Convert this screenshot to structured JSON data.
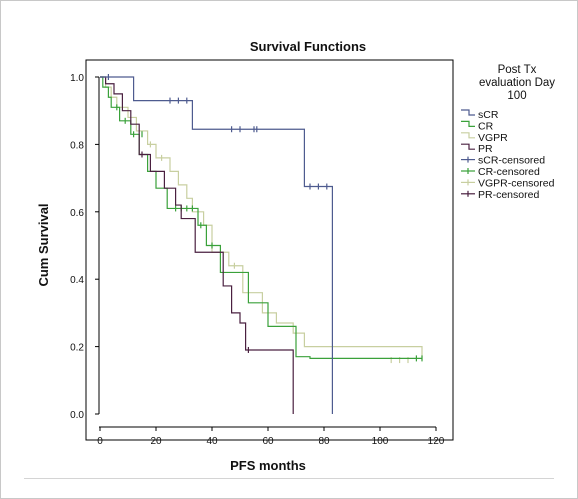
{
  "chart_data": {
    "type": "line",
    "title": "Survival Functions",
    "xlabel": "PFS months",
    "ylabel": "Cum Survival",
    "xlim": [
      0,
      120
    ],
    "ylim": [
      0,
      1.0
    ],
    "x_ticks": [
      "0",
      "20",
      "40",
      "60",
      "80",
      "100",
      "120"
    ],
    "y_ticks": [
      "0.0",
      "0.2",
      "0.4",
      "0.6",
      "0.8",
      "1.0"
    ],
    "grid": false,
    "legend_title": "Post Tx evaluation Day 100",
    "legend_title_lines": [
      "Post Tx",
      "evaluation Day",
      "100"
    ],
    "legend_position": "right",
    "legend": [
      "sCR",
      "CR",
      "VGPR",
      "PR",
      "sCR-censored",
      "CR-censored",
      "VGPR-censored",
      "PR-censored"
    ],
    "series": [
      {
        "name": "sCR",
        "color": "#4e5b8f",
        "x": [
          0,
          2,
          5,
          12,
          33,
          73,
          83,
          83
        ],
        "y": [
          1.0,
          1.0,
          1.0,
          0.93,
          0.845,
          0.675,
          0.675,
          0.0
        ],
        "censored_x": [
          3,
          25,
          28,
          31,
          47,
          50,
          55,
          56,
          75,
          78,
          81
        ],
        "censored_y": [
          1.0,
          0.93,
          0.93,
          0.93,
          0.845,
          0.845,
          0.845,
          0.845,
          0.675,
          0.675,
          0.675
        ]
      },
      {
        "name": "CR",
        "color": "#3aa13a",
        "x": [
          0,
          1,
          3,
          4,
          7,
          11,
          14,
          17,
          20,
          24,
          35,
          38,
          43,
          53,
          60,
          70,
          75,
          115
        ],
        "y": [
          1.0,
          0.97,
          0.94,
          0.91,
          0.87,
          0.83,
          0.77,
          0.72,
          0.67,
          0.61,
          0.56,
          0.5,
          0.42,
          0.33,
          0.26,
          0.17,
          0.165,
          0.165
        ],
        "censored_x": [
          6,
          9,
          12,
          15,
          27,
          29,
          31,
          33,
          36,
          40,
          113,
          115
        ],
        "censored_y": [
          0.91,
          0.87,
          0.83,
          0.83,
          0.61,
          0.61,
          0.61,
          0.61,
          0.56,
          0.5,
          0.165,
          0.165
        ]
      },
      {
        "name": "VGPR",
        "color": "#c8cfa0",
        "x": [
          0,
          2,
          4,
          6,
          10,
          13,
          17,
          20,
          25,
          28,
          31,
          33,
          37,
          40,
          46,
          51,
          58,
          63,
          69,
          73,
          88,
          115
        ],
        "y": [
          1.0,
          0.97,
          0.94,
          0.91,
          0.88,
          0.84,
          0.8,
          0.76,
          0.72,
          0.68,
          0.64,
          0.6,
          0.56,
          0.48,
          0.44,
          0.36,
          0.3,
          0.27,
          0.24,
          0.2,
          0.2,
          0.16
        ],
        "censored_x": [
          18,
          22,
          48,
          104,
          107,
          110
        ],
        "censored_y": [
          0.8,
          0.76,
          0.44,
          0.16,
          0.16,
          0.16
        ]
      },
      {
        "name": "PR",
        "color": "#4a2040",
        "x": [
          0,
          2,
          5,
          8,
          11,
          14,
          18,
          23,
          27,
          29,
          34,
          44,
          47,
          50,
          52,
          62,
          69,
          69
        ],
        "y": [
          1.0,
          0.98,
          0.95,
          0.9,
          0.86,
          0.77,
          0.72,
          0.67,
          0.62,
          0.58,
          0.48,
          0.38,
          0.3,
          0.27,
          0.19,
          0.19,
          0.11,
          0.0
        ],
        "censored_x": [
          15,
          53
        ],
        "censored_y": [
          0.77,
          0.19
        ]
      }
    ]
  }
}
